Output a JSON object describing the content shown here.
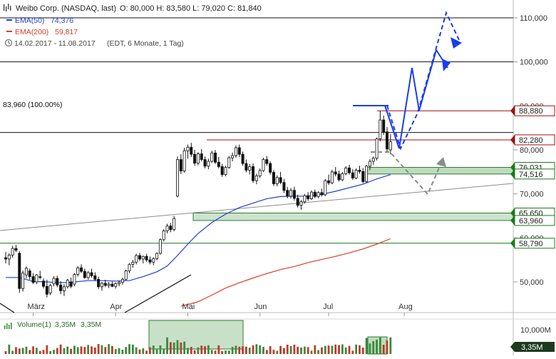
{
  "header": {
    "title": "Weibo Corp. (NASDAQ, last)",
    "ohlc": "O: 80,000  H: 83,580  L: 79,020  C: 81,840",
    "ema50_label": "EMA(50)",
    "ema50_value": "74,376",
    "ema200_label": "EMA(200)",
    "ema200_value": "59,817",
    "range_text": "14.02.2017 - 11.08.2017",
    "range_note": "(EDT, 6 Monate, 1 Tag)"
  },
  "volume_header": {
    "label": "Volume(1)",
    "value1": "3,35M",
    "value2": "3,35M"
  },
  "colors": {
    "candle": "#111111",
    "ema50": "#1f3fd6",
    "ema200": "#e23a2a",
    "support_zone": "#9bc79b",
    "projection_blue": "#1a3cf0",
    "projection_gray": "#8a8a8a",
    "level_red": "#a01010",
    "level_green": "#1a7a1a",
    "level_black": "#111111"
  },
  "chart_data": {
    "type": "candlestick",
    "y_axis": {
      "ticks": [
        50,
        60,
        70,
        80,
        90,
        100,
        110
      ],
      "tick_labels": [
        "50,000",
        "60,000",
        "70,000",
        "80,000",
        "90,000",
        "100,000",
        "110,000"
      ],
      "range": [
        44.5,
        112
      ]
    },
    "x_axis": {
      "month_labels": [
        "März",
        "Apr",
        "Mai",
        "Jun",
        "Jul",
        "Aug"
      ],
      "month_index": [
        8,
        32,
        53,
        74,
        94,
        116
      ]
    },
    "candles_ohlc": [
      [
        55.5,
        56.8,
        54.2,
        55.2
      ],
      [
        55.2,
        56.5,
        53.8,
        56.1
      ],
      [
        56.1,
        58.2,
        55.5,
        57.6
      ],
      [
        57.6,
        58.4,
        56.8,
        57.2
      ],
      [
        56.5,
        57.0,
        47.5,
        48.5
      ],
      [
        48.5,
        52.6,
        47.8,
        52.0
      ],
      [
        51.6,
        53.5,
        50.8,
        53.1
      ],
      [
        52.5,
        53.0,
        50.5,
        51.2
      ],
      [
        51.2,
        52.0,
        49.5,
        49.9
      ],
      [
        50.0,
        51.8,
        49.5,
        51.6
      ],
      [
        51.2,
        52.5,
        50.6,
        51.0
      ],
      [
        50.2,
        50.8,
        48.5,
        49.0
      ],
      [
        49.0,
        50.5,
        46.5,
        47.2
      ],
      [
        47.5,
        49.6,
        47.0,
        49.2
      ],
      [
        49.6,
        51.3,
        49.0,
        50.8
      ],
      [
        50.8,
        51.4,
        48.8,
        49.3
      ],
      [
        49.3,
        50.2,
        47.2,
        48.0
      ],
      [
        48.0,
        49.5,
        46.8,
        48.9
      ],
      [
        48.9,
        50.7,
        48.5,
        50.4
      ],
      [
        50.0,
        51.0,
        48.6,
        49.0
      ],
      [
        49.5,
        52.0,
        49.0,
        51.7
      ],
      [
        51.7,
        53.6,
        51.2,
        53.2
      ],
      [
        53.2,
        54.0,
        52.0,
        52.4
      ],
      [
        52.4,
        53.0,
        50.7,
        51.0
      ],
      [
        51.0,
        52.5,
        50.5,
        52.1
      ],
      [
        52.1,
        53.0,
        51.0,
        51.4
      ],
      [
        51.4,
        52.2,
        50.2,
        50.6
      ],
      [
        50.6,
        51.2,
        48.4,
        48.9
      ],
      [
        48.9,
        50.0,
        48.0,
        49.7
      ],
      [
        49.7,
        50.5,
        48.8,
        49.2
      ],
      [
        49.2,
        50.0,
        48.6,
        49.5
      ],
      [
        49.5,
        50.1,
        48.8,
        49.0
      ],
      [
        49.0,
        49.9,
        48.5,
        49.6
      ],
      [
        49.6,
        50.3,
        49.0,
        49.9
      ],
      [
        49.9,
        51.0,
        49.4,
        50.6
      ],
      [
        50.6,
        52.8,
        50.3,
        52.5
      ],
      [
        52.5,
        54.3,
        52.0,
        54.0
      ],
      [
        54.0,
        55.0,
        53.2,
        54.5
      ],
      [
        54.5,
        56.4,
        54.0,
        56.0
      ],
      [
        56.0,
        56.6,
        54.8,
        55.2
      ],
      [
        55.2,
        56.0,
        54.2,
        55.8
      ],
      [
        55.8,
        56.4,
        54.6,
        55.0
      ],
      [
        55.0,
        55.8,
        54.0,
        54.5
      ],
      [
        54.5,
        55.6,
        53.8,
        55.3
      ],
      [
        55.3,
        56.7,
        54.9,
        56.5
      ],
      [
        56.5,
        59.9,
        56.2,
        59.6
      ],
      [
        59.6,
        62.0,
        59.2,
        61.6
      ],
      [
        61.6,
        63.2,
        61.0,
        62.7
      ],
      [
        62.7,
        63.4,
        61.3,
        61.9
      ],
      [
        61.9,
        65.0,
        61.5,
        64.4
      ],
      [
        69.5,
        78.5,
        69.2,
        77.8
      ],
      [
        77.8,
        79.0,
        74.5,
        75.2
      ],
      [
        75.2,
        80.5,
        74.8,
        79.8
      ],
      [
        79.8,
        81.2,
        78.0,
        80.6
      ],
      [
        80.6,
        81.6,
        78.4,
        79.0
      ],
      [
        79.0,
        80.0,
        76.4,
        77.0
      ],
      [
        77.0,
        79.5,
        76.5,
        79.1
      ],
      [
        79.1,
        80.2,
        77.4,
        77.8
      ],
      [
        77.8,
        78.5,
        75.8,
        76.3
      ],
      [
        76.3,
        78.0,
        75.6,
        77.4
      ],
      [
        77.4,
        79.8,
        77.0,
        79.3
      ],
      [
        79.3,
        80.0,
        76.8,
        77.2
      ],
      [
        77.2,
        78.4,
        75.8,
        76.2
      ],
      [
        76.2,
        76.8,
        73.9,
        74.4
      ],
      [
        74.4,
        76.4,
        74.0,
        76.0
      ],
      [
        76.0,
        78.6,
        75.7,
        78.2
      ],
      [
        78.2,
        79.4,
        77.4,
        78.7
      ],
      [
        78.7,
        81.0,
        78.2,
        80.5
      ],
      [
        80.5,
        81.2,
        78.4,
        79.0
      ],
      [
        79.0,
        79.6,
        76.4,
        76.9
      ],
      [
        76.9,
        77.8,
        74.9,
        75.4
      ],
      [
        75.4,
        76.8,
        74.4,
        76.2
      ],
      [
        76.2,
        76.9,
        72.5,
        73.0
      ],
      [
        73.0,
        74.6,
        72.2,
        74.1
      ],
      [
        74.1,
        75.8,
        73.6,
        75.3
      ],
      [
        75.3,
        78.2,
        75.0,
        77.8
      ],
      [
        77.8,
        78.6,
        76.4,
        76.9
      ],
      [
        76.9,
        77.4,
        74.4,
        74.9
      ],
      [
        74.9,
        75.4,
        71.8,
        72.3
      ],
      [
        72.3,
        74.2,
        71.7,
        73.7
      ],
      [
        73.7,
        75.0,
        72.2,
        72.6
      ],
      [
        72.6,
        73.4,
        70.2,
        70.8
      ],
      [
        70.8,
        71.6,
        69.0,
        69.5
      ],
      [
        69.5,
        71.3,
        68.9,
        70.8
      ],
      [
        70.8,
        71.6,
        68.5,
        69.0
      ],
      [
        69.0,
        69.8,
        66.9,
        67.4
      ],
      [
        67.4,
        68.6,
        66.4,
        68.2
      ],
      [
        68.2,
        70.0,
        67.8,
        69.6
      ],
      [
        69.6,
        70.4,
        68.4,
        68.9
      ],
      [
        68.9,
        70.8,
        68.6,
        70.4
      ],
      [
        70.4,
        71.0,
        69.0,
        69.4
      ],
      [
        69.4,
        70.6,
        69.0,
        70.3
      ],
      [
        70.3,
        71.2,
        69.4,
        69.8
      ],
      [
        69.8,
        73.4,
        69.5,
        73.0
      ],
      [
        73.0,
        74.4,
        72.0,
        72.5
      ],
      [
        72.5,
        75.5,
        72.2,
        75.0
      ],
      [
        75.0,
        76.1,
        74.0,
        74.5
      ],
      [
        74.5,
        75.3,
        72.8,
        73.2
      ],
      [
        73.2,
        75.0,
        72.9,
        74.6
      ],
      [
        74.6,
        76.3,
        74.2,
        75.9
      ],
      [
        75.9,
        76.6,
        74.4,
        74.8
      ],
      [
        74.8,
        75.6,
        73.2,
        73.6
      ],
      [
        73.6,
        75.8,
        73.3,
        75.4
      ],
      [
        75.4,
        76.4,
        74.6,
        75.1
      ],
      [
        75.1,
        75.9,
        72.4,
        72.8
      ],
      [
        72.8,
        76.6,
        72.5,
        76.3
      ],
      [
        76.3,
        77.9,
        75.4,
        77.4
      ],
      [
        77.4,
        78.5,
        76.6,
        78.1
      ],
      [
        78.1,
        82.8,
        77.6,
        82.5
      ],
      [
        82.5,
        88.9,
        81.9,
        86.8
      ],
      [
        86.8,
        87.8,
        83.4,
        84.1
      ],
      [
        84.1,
        85.2,
        79.6,
        80.2
      ],
      [
        80.0,
        83.6,
        79.0,
        81.84
      ]
    ],
    "ema50_polyline": [
      [
        0,
        51.0
      ],
      [
        4,
        51.0
      ],
      [
        8,
        50.1
      ],
      [
        12,
        50.0
      ],
      [
        16,
        49.8
      ],
      [
        20,
        50.0
      ],
      [
        24,
        50.3
      ],
      [
        28,
        50.3
      ],
      [
        32,
        50.2
      ],
      [
        36,
        50.3
      ],
      [
        40,
        51.2
      ],
      [
        44,
        52.3
      ],
      [
        47,
        53.6
      ],
      [
        50,
        56.0
      ],
      [
        53,
        58.6
      ],
      [
        56,
        61.0
      ],
      [
        60,
        63.5
      ],
      [
        64,
        65.4
      ],
      [
        68,
        66.9
      ],
      [
        72,
        67.9
      ],
      [
        76,
        68.9
      ],
      [
        80,
        69.4
      ],
      [
        84,
        69.5
      ],
      [
        88,
        69.5
      ],
      [
        92,
        69.9
      ],
      [
        96,
        70.6
      ],
      [
        100,
        71.4
      ],
      [
        104,
        72.2
      ],
      [
        108,
        73.4
      ],
      [
        112,
        74.376
      ]
    ],
    "ema200_polyline": [
      [
        51,
        44.5
      ],
      [
        56,
        45.5
      ],
      [
        60,
        47.0
      ],
      [
        64,
        48.6
      ],
      [
        68,
        49.8
      ],
      [
        72,
        50.9
      ],
      [
        76,
        51.9
      ],
      [
        80,
        52.8
      ],
      [
        84,
        53.5
      ],
      [
        88,
        54.4
      ],
      [
        92,
        55.1
      ],
      [
        96,
        55.8
      ],
      [
        100,
        56.6
      ],
      [
        104,
        57.5
      ],
      [
        108,
        58.6
      ],
      [
        112,
        59.817
      ]
    ],
    "price_levels": [
      {
        "label": "88,880",
        "value": 88.88,
        "kind": "resistance"
      },
      {
        "label": "82,280",
        "value": 82.28,
        "kind": "resistance"
      },
      {
        "label": "76,031",
        "value": 76.031,
        "kind": "support"
      },
      {
        "label": "74,516",
        "value": 74.516,
        "kind": "support"
      },
      {
        "label": "65,650",
        "value": 65.65,
        "kind": "support"
      },
      {
        "label": "63,960",
        "value": 63.96,
        "kind": "support"
      },
      {
        "label": "58,790",
        "value": 58.79,
        "kind": "support"
      }
    ],
    "reference_line_label": "83,960 (100.00%)",
    "reference_line_value": 83.96,
    "horizontal_lines": [
      110.0,
      100.0
    ],
    "volume_axis_label": "10,000M",
    "volume_last_badge": "3,35M"
  }
}
